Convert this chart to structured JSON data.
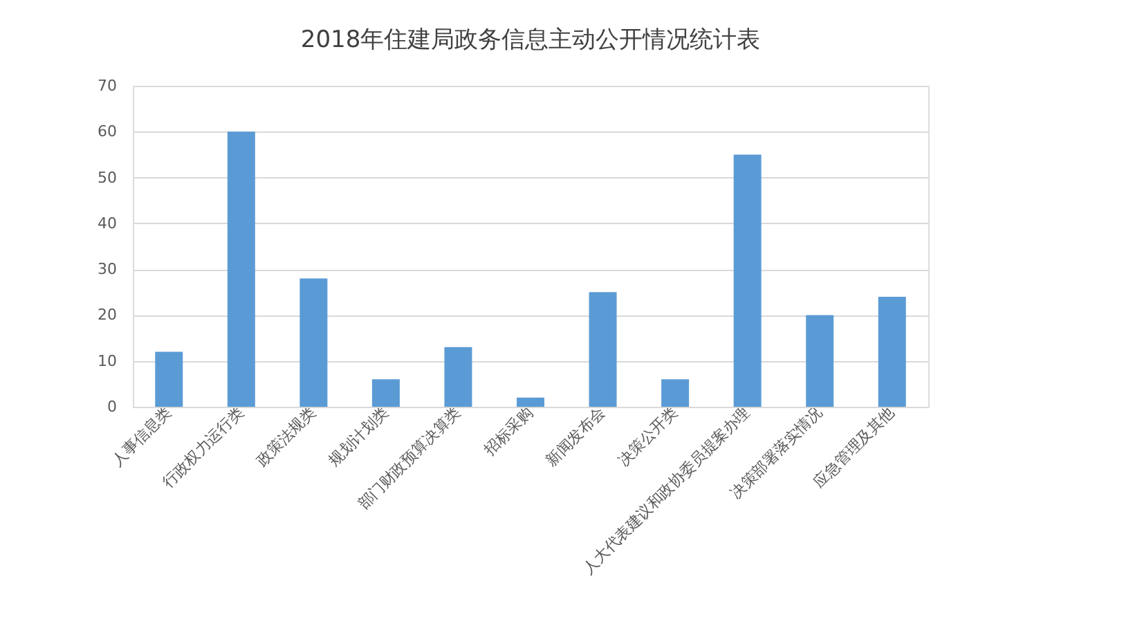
{
  "chart_data": {
    "type": "bar",
    "title": "2018年住建局政务信息主动公开情况统计表",
    "categories": [
      "人事信息类",
      "行政权力运行类",
      "政策法规类",
      "规划计划类",
      "部门财政预算决算类",
      "招标采购",
      "新闻发布会",
      "决策公开类",
      "人大代表建议和政协委员提案办理",
      "决策部署落实情况",
      "应急管理及其他"
    ],
    "values": [
      12,
      60,
      28,
      6,
      13,
      2,
      25,
      6,
      55,
      20,
      24
    ],
    "color": "#5b9bd5",
    "ylim": [
      0,
      70
    ],
    "yticks": [
      0,
      10,
      20,
      30,
      40,
      50,
      60,
      70
    ],
    "grid": "y"
  }
}
